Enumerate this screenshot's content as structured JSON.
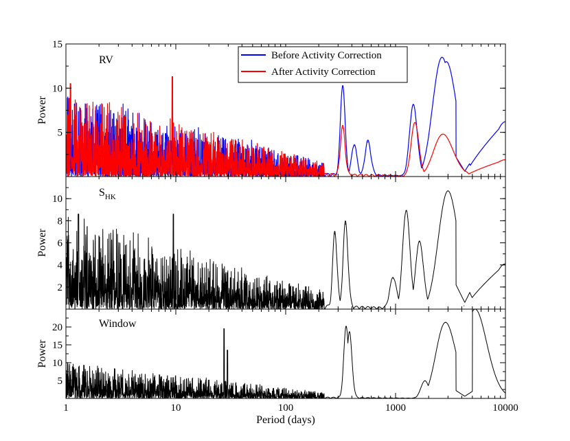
{
  "chart_data": [
    {
      "type": "line",
      "panel_label": "RV",
      "ylabel": "Power",
      "xscale": "log",
      "xlim": [
        1,
        10000
      ],
      "ylim": [
        0,
        15
      ],
      "yticks": [
        5,
        10,
        15
      ],
      "legend": {
        "placement": "top-center"
      },
      "series": [
        {
          "name": "Before Activity Correction",
          "color": "#0000ff",
          "peaks": [
            [
              1.2,
              8.2
            ],
            [
              1.35,
              7.7
            ],
            [
              2.1,
              7.0
            ],
            [
              9.3,
              11.3
            ],
            [
              330,
              10.2
            ],
            [
              420,
              3.5
            ],
            [
              560,
              3.9
            ],
            [
              1450,
              8.1
            ],
            [
              2650,
              13.5
            ],
            [
              2900,
              13.0
            ],
            [
              4300,
              0.6
            ],
            [
              10000,
              6.2
            ]
          ]
        },
        {
          "name": "After Activity Correction",
          "color": "#ff0000",
          "peaks": [
            [
              1.1,
              10.5
            ],
            [
              9.3,
              11.3
            ],
            [
              330,
              5.5
            ],
            [
              1500,
              6.1
            ],
            [
              2700,
              4.8
            ],
            [
              4300,
              0.6
            ],
            [
              10000,
              1.9
            ]
          ]
        }
      ]
    },
    {
      "type": "line",
      "panel_label": "S",
      "panel_label_sub": "HK",
      "ylabel": "Power",
      "xscale": "log",
      "xlim": [
        1,
        10000
      ],
      "ylim": [
        0,
        12
      ],
      "yticks": [
        2,
        4,
        6,
        8,
        10
      ],
      "series": [
        {
          "color": "#000000",
          "peaks": [
            [
              1.3,
              8.6
            ],
            [
              9.5,
              8.6
            ],
            [
              280,
              6.8
            ],
            [
              350,
              7.7
            ],
            [
              950,
              2.8
            ],
            [
              1250,
              8.9
            ],
            [
              1650,
              6.1
            ],
            [
              3000,
              10.7
            ],
            [
              4200,
              0.3
            ],
            [
              10000,
              4.1
            ]
          ]
        }
      ]
    },
    {
      "type": "line",
      "panel_label": "Window",
      "ylabel": "Power",
      "xscale": "log",
      "xlim": [
        1,
        10000
      ],
      "ylim": [
        0,
        25
      ],
      "yticks": [
        5,
        10,
        15,
        20
      ],
      "xlabel": "Period (days)",
      "xticks": [
        "1",
        "10",
        "100",
        "1000",
        "10000"
      ],
      "series": [
        {
          "color": "#000000",
          "peaks": [
            [
              1.2,
              8.0
            ],
            [
              27.5,
              19.5
            ],
            [
              29.5,
              13.5
            ],
            [
              355,
              20.0
            ],
            [
              380,
              18.5
            ],
            [
              1850,
              4.9
            ],
            [
              2850,
              21.3
            ],
            [
              5300,
              25.0
            ]
          ]
        }
      ]
    }
  ]
}
